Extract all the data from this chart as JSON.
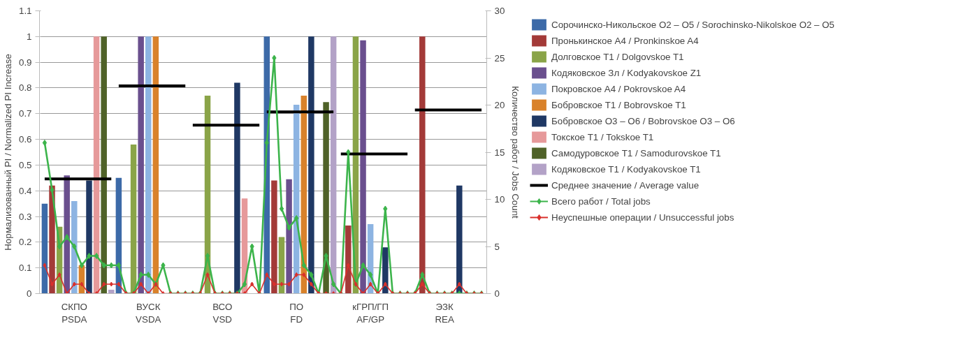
{
  "chart_data": {
    "type": "bar",
    "categories": [
      null,
      null,
      null,
      null,
      "СКПО\nPSDA",
      null,
      null,
      null,
      null,
      null,
      null,
      null,
      null,
      null,
      "ВУСК\nVSDA",
      null,
      null,
      null,
      null,
      null,
      null,
      null,
      null,
      null,
      "ВСО\nVSD",
      null,
      null,
      null,
      null,
      null,
      null,
      null,
      null,
      null,
      "ПО\nFD",
      null,
      null,
      null,
      null,
      null,
      null,
      null,
      null,
      null,
      "кГРП/ГП\nAF/GP",
      null,
      null,
      null,
      null,
      null,
      null,
      null,
      null,
      null,
      "ЭЗК\nREA",
      null,
      null,
      null,
      null,
      null
    ],
    "ylabel": "Нормализованный PI / Normalized PI Increase",
    "y2label": "Количество работ / Jobs Count",
    "ylim": [
      0,
      1.1
    ],
    "yticks": [
      0,
      0.1,
      0.2,
      0.3,
      0.4,
      0.5,
      0.6,
      0.7,
      0.8,
      0.9,
      1,
      1.1
    ],
    "y2lim": [
      0,
      30
    ],
    "y2ticks": [
      0,
      5,
      10,
      15,
      20,
      25,
      30
    ],
    "grid": "y",
    "legend": "right",
    "series": [
      {
        "name": "Сорочинско-Никольское О2 – О5 / Sorochinsko-Nikolskoe O2 – O5",
        "color": "#3c6aa8",
        "values": [
          0.35,
          null,
          null,
          null,
          null,
          null,
          null,
          null,
          null,
          null,
          0.45,
          null,
          null,
          null,
          null,
          null,
          null,
          null,
          null,
          null,
          null,
          null,
          null,
          null,
          null,
          null,
          null,
          null,
          null,
          null,
          1.0,
          null,
          null,
          null,
          null,
          null,
          null,
          null,
          null,
          null,
          null,
          null,
          null,
          null,
          null,
          null,
          null,
          null,
          null,
          null,
          null,
          null,
          null,
          null,
          null,
          null,
          null,
          null,
          null,
          null
        ]
      },
      {
        "name": "Пронькинское А4 / Pronkinskoe A4",
        "color": "#a33a38",
        "values": [
          null,
          0.42,
          null,
          null,
          null,
          null,
          null,
          null,
          null,
          null,
          null,
          null,
          null,
          null,
          null,
          null,
          null,
          null,
          null,
          null,
          null,
          null,
          null,
          null,
          null,
          null,
          null,
          null,
          null,
          null,
          null,
          0.44,
          null,
          null,
          null,
          null,
          null,
          null,
          null,
          null,
          null,
          0.265,
          null,
          null,
          null,
          null,
          null,
          null,
          null,
          null,
          null,
          1.0,
          null,
          null,
          null,
          null,
          null,
          null,
          null,
          null
        ]
      },
      {
        "name": "Долговское Т1 / Dolgovskoe T1",
        "color": "#8aa448",
        "values": [
          null,
          null,
          0.26,
          null,
          null,
          null,
          null,
          null,
          null,
          null,
          null,
          null,
          0.58,
          null,
          null,
          null,
          null,
          null,
          null,
          null,
          null,
          null,
          0.77,
          null,
          null,
          null,
          null,
          null,
          null,
          null,
          null,
          null,
          0.22,
          null,
          null,
          null,
          null,
          null,
          null,
          null,
          null,
          null,
          1.0,
          null,
          null,
          null,
          null,
          null,
          null,
          null,
          null,
          null,
          null,
          null,
          null,
          null,
          null,
          null,
          null,
          null
        ]
      },
      {
        "name": "Кодяковское Зл / Kodyakovskoe Z1",
        "color": "#6a4f8e",
        "values": [
          null,
          null,
          null,
          0.46,
          null,
          null,
          null,
          null,
          null,
          null,
          null,
          null,
          null,
          1.0,
          null,
          null,
          null,
          null,
          null,
          null,
          null,
          null,
          null,
          null,
          null,
          null,
          null,
          null,
          null,
          null,
          null,
          null,
          null,
          0.445,
          null,
          null,
          null,
          null,
          null,
          null,
          null,
          null,
          null,
          0.985,
          null,
          null,
          null,
          null,
          null,
          null,
          null,
          null,
          null,
          null,
          null,
          null,
          null,
          null,
          null,
          null
        ]
      },
      {
        "name": "Покровское А4 / Pokrovskoe A4",
        "color": "#8db4e2",
        "values": [
          null,
          null,
          null,
          null,
          0.36,
          null,
          null,
          null,
          null,
          null,
          null,
          null,
          null,
          null,
          1.0,
          null,
          null,
          null,
          null,
          null,
          null,
          null,
          null,
          null,
          null,
          null,
          null,
          null,
          null,
          null,
          null,
          null,
          null,
          null,
          0.735,
          null,
          null,
          null,
          null,
          null,
          null,
          null,
          null,
          null,
          0.27,
          null,
          null,
          null,
          null,
          null,
          null,
          null,
          null,
          null,
          null,
          null,
          null,
          null,
          null,
          null
        ]
      },
      {
        "name": "Бобровское Т1 / Bobrovskoe T1",
        "color": "#d9822b",
        "values": [
          null,
          null,
          null,
          null,
          null,
          0.11,
          null,
          null,
          null,
          null,
          null,
          null,
          null,
          null,
          null,
          1.0,
          null,
          null,
          null,
          null,
          null,
          null,
          null,
          null,
          null,
          null,
          null,
          null,
          null,
          null,
          null,
          null,
          null,
          null,
          null,
          0.77,
          null,
          null,
          null,
          null,
          null,
          null,
          null,
          null,
          null,
          null,
          null,
          null,
          null,
          null,
          null,
          null,
          null,
          null,
          null,
          null,
          null,
          null,
          null,
          null
        ]
      },
      {
        "name": "Бобровское О3 – О6 / Bobrovskoe O3 – O6",
        "color": "#1f3864",
        "values": [
          null,
          null,
          null,
          null,
          null,
          null,
          0.44,
          null,
          null,
          null,
          null,
          null,
          null,
          null,
          null,
          null,
          null,
          null,
          null,
          null,
          null,
          null,
          null,
          null,
          null,
          null,
          0.82,
          null,
          null,
          null,
          null,
          null,
          null,
          null,
          null,
          null,
          1.0,
          null,
          null,
          null,
          null,
          null,
          null,
          null,
          null,
          null,
          0.18,
          null,
          null,
          null,
          null,
          null,
          null,
          null,
          null,
          null,
          0.42,
          null,
          null,
          null
        ]
      },
      {
        "name": "Токское Т1 / Tokskoe T1",
        "color": "#e6999a",
        "values": [
          null,
          null,
          null,
          null,
          null,
          null,
          null,
          1.0,
          null,
          null,
          null,
          null,
          null,
          null,
          null,
          null,
          null,
          null,
          null,
          null,
          null,
          null,
          null,
          null,
          null,
          null,
          null,
          0.37,
          null,
          null,
          null,
          null,
          null,
          null,
          null,
          null,
          null,
          null,
          null,
          null,
          null,
          null,
          null,
          null,
          null,
          null,
          null,
          null,
          null,
          null,
          null,
          null,
          null,
          null,
          null,
          null,
          null,
          null,
          null,
          null
        ]
      },
      {
        "name": "Самодуровское Т1 / Samodurovskoe T1",
        "color": "#4f6228",
        "values": [
          null,
          null,
          null,
          null,
          null,
          null,
          null,
          null,
          1.0,
          null,
          null,
          null,
          null,
          null,
          null,
          null,
          null,
          null,
          null,
          null,
          null,
          null,
          null,
          null,
          null,
          null,
          null,
          null,
          null,
          null,
          null,
          null,
          null,
          null,
          null,
          null,
          null,
          null,
          0.745,
          null,
          null,
          null,
          null,
          null,
          null,
          null,
          null,
          null,
          null,
          null,
          null,
          null,
          null,
          null,
          null,
          null,
          null,
          null,
          null,
          null
        ]
      },
      {
        "name": "Кодяковское Т1 / Kodyakovskoe T1",
        "color": "#b3a2c7",
        "values": [
          null,
          null,
          null,
          null,
          null,
          null,
          null,
          null,
          null,
          0.015,
          null,
          null,
          null,
          null,
          null,
          null,
          null,
          null,
          null,
          null,
          null,
          null,
          null,
          null,
          null,
          null,
          null,
          null,
          null,
          null,
          null,
          null,
          null,
          null,
          null,
          null,
          null,
          null,
          null,
          1.0,
          null,
          null,
          null,
          null,
          null,
          null,
          null,
          null,
          null,
          null,
          null,
          null,
          null,
          null,
          null,
          null,
          null,
          null,
          null,
          null
        ]
      },
      {
        "name": "Среднее значение / Average value",
        "type": "line",
        "color": "#000000",
        "values": [
          0.446,
          0.446,
          0.446,
          0.446,
          0.446,
          0.446,
          0.446,
          0.446,
          0.446,
          0.446,
          0.808,
          0.808,
          0.808,
          0.808,
          0.808,
          0.808,
          0.808,
          0.808,
          0.808,
          0.808,
          0.655,
          0.655,
          0.655,
          0.655,
          0.655,
          0.655,
          0.655,
          0.655,
          0.655,
          0.655,
          0.707,
          0.707,
          0.707,
          0.707,
          0.707,
          0.707,
          0.707,
          0.707,
          0.707,
          0.707,
          0.543,
          0.543,
          0.543,
          0.543,
          0.543,
          0.543,
          0.543,
          0.543,
          0.543,
          0.543,
          0.714,
          0.714,
          0.714,
          0.714,
          0.714,
          0.714,
          0.714,
          0.714,
          0.714,
          0.714
        ]
      },
      {
        "name": "Всего работ / Total jobs",
        "type": "line",
        "axis": "y2",
        "marker": "diamond",
        "color": "#3cb44b",
        "values": [
          16,
          11,
          5,
          6,
          5,
          3,
          4,
          4,
          3,
          3,
          3,
          0,
          0,
          2,
          2,
          1,
          3,
          0,
          0,
          0,
          0,
          0,
          4,
          0,
          0,
          0,
          0,
          1,
          5,
          0,
          16,
          25,
          9,
          7,
          8,
          3,
          2,
          0,
          4,
          1,
          0,
          15,
          1,
          3,
          2,
          0,
          9,
          0,
          0,
          0,
          0,
          2,
          0,
          0,
          0,
          0,
          0,
          0,
          0,
          0
        ]
      },
      {
        "name": "Неуспешные операции / Unsuccessful jobs",
        "type": "line",
        "axis": "y2",
        "marker": "diamond",
        "color": "#d9302c",
        "values": [
          3,
          1,
          2,
          0,
          1,
          1,
          0,
          0,
          1,
          1,
          1,
          0,
          0,
          1,
          0,
          1,
          0,
          0,
          0,
          0,
          0,
          0,
          2,
          0,
          0,
          0,
          0,
          0,
          1,
          0,
          2,
          1,
          1,
          1,
          2,
          2,
          1,
          0,
          0,
          0,
          0,
          3,
          1,
          0,
          1,
          0,
          1,
          0,
          0,
          0,
          0,
          1,
          0,
          0,
          0,
          0,
          1,
          0,
          0,
          0
        ]
      }
    ]
  }
}
